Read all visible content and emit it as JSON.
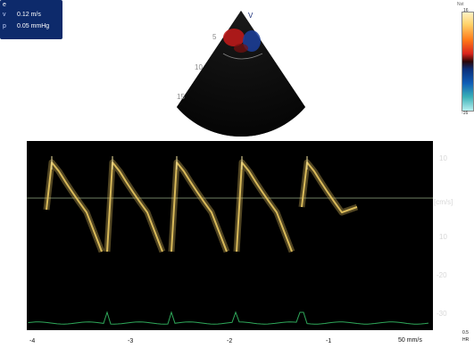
{
  "readout": {
    "header": "e",
    "rows": [
      {
        "key": "v",
        "value": "0.12 m/s"
      },
      {
        "key": "p",
        "value": "0.05 mmHg"
      }
    ]
  },
  "colorbar": {
    "label": "Nst",
    "top_value": "16",
    "bottom_value": "-16"
  },
  "sector": {
    "marker": "V",
    "depth_labels": [
      "5",
      "10",
      "15"
    ]
  },
  "doppler": {
    "y_ticks": [
      "10",
      "[cm/s]",
      "10",
      "-20",
      "-30"
    ],
    "x_ticks": [
      "-4",
      "-3",
      "-2",
      "-1"
    ],
    "sweep_label": "50 mm/s",
    "corner_label_1": "0.5",
    "corner_label_2": "HR"
  },
  "colors": {
    "panel_bg": "#000000",
    "trace": "#e8c760",
    "baseline": "#6f7f63",
    "ecg": "#2fa85a",
    "readout_bg": "#0d2a6b"
  }
}
